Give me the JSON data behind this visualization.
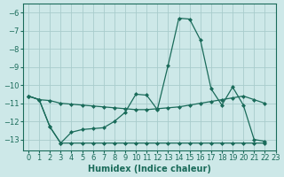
{
  "xlabel": "Humidex (Indice chaleur)",
  "background_color": "#cde8e8",
  "grid_color": "#a8cccc",
  "line_color": "#1a6b5a",
  "xlim": [
    -0.5,
    23
  ],
  "ylim": [
    -13.6,
    -5.5
  ],
  "yticks": [
    -6,
    -7,
    -8,
    -9,
    -10,
    -11,
    -12,
    -13
  ],
  "xticks": [
    0,
    1,
    2,
    3,
    4,
    5,
    6,
    7,
    8,
    9,
    10,
    11,
    12,
    13,
    14,
    15,
    16,
    17,
    18,
    19,
    20,
    21,
    22,
    23
  ],
  "curve_straight_x": [
    0,
    1,
    2,
    3,
    4,
    5,
    6,
    7,
    8,
    9,
    10,
    11,
    12,
    13,
    14,
    15,
    16,
    17,
    18,
    19,
    20,
    21,
    22
  ],
  "curve_straight_y": [
    -10.6,
    -10.8,
    -10.85,
    -11.0,
    -11.05,
    -11.1,
    -11.15,
    -11.2,
    -11.25,
    -11.3,
    -11.35,
    -11.35,
    -11.3,
    -11.25,
    -11.2,
    -11.1,
    -11.0,
    -10.9,
    -10.8,
    -10.7,
    -10.6,
    -10.8,
    -11.0
  ],
  "curve_peak_x": [
    0,
    1,
    2,
    3,
    4,
    5,
    6,
    7,
    8,
    9,
    10,
    11,
    12,
    13,
    14,
    15,
    16,
    17,
    18,
    19,
    20,
    21,
    22
  ],
  "curve_peak_y": [
    -10.6,
    -10.8,
    -12.3,
    -13.2,
    -12.6,
    -12.45,
    -12.4,
    -12.35,
    -12.0,
    -11.5,
    -10.5,
    -10.55,
    -11.35,
    -8.9,
    -6.3,
    -6.35,
    -7.5,
    -10.2,
    -11.1,
    -10.1,
    -11.1,
    -13.0,
    -13.1
  ],
  "curve_flat_x": [
    0,
    1,
    2,
    3,
    4,
    5,
    6,
    7,
    8,
    9,
    10,
    11,
    12,
    13,
    14,
    15,
    16,
    17,
    18,
    19,
    20,
    21,
    22
  ],
  "curve_flat_y": [
    -10.6,
    -10.8,
    -12.3,
    -13.2,
    -13.2,
    -13.2,
    -13.2,
    -13.2,
    -13.2,
    -13.2,
    -13.2,
    -13.2,
    -13.2,
    -13.2,
    -13.2,
    -13.2,
    -13.2,
    -13.2,
    -13.2,
    -13.2,
    -13.2,
    -13.2,
    -13.2
  ],
  "marker": "D",
  "markersize": 2.0,
  "linewidth": 0.9,
  "tick_fontsize": 6,
  "xlabel_fontsize": 7
}
